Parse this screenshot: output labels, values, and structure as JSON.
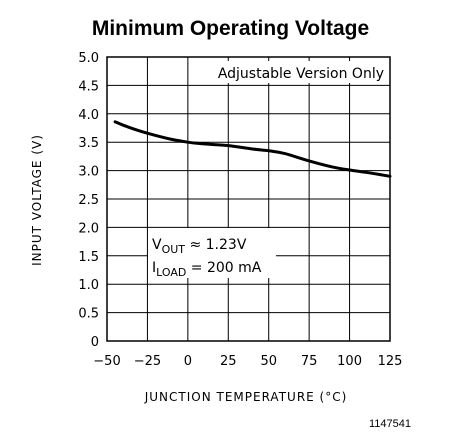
{
  "chart_data": {
    "type": "line",
    "title": "Minimum Operating Voltage",
    "xlabel": "JUNCTION TEMPERATURE (°C)",
    "ylabel": "INPUT VOLTAGE (V)",
    "xlim": [
      -50,
      125
    ],
    "ylim": [
      0,
      5.0
    ],
    "xticks": [
      "-50",
      "-25",
      "0",
      "25",
      "50",
      "75",
      "100",
      "125"
    ],
    "yticks": [
      "0",
      "0.5",
      "1.0",
      "1.5",
      "2.0",
      "2.5",
      "3.0",
      "3.5",
      "4.0",
      "4.5",
      "5.0"
    ],
    "grid": true,
    "legend": "none",
    "annotation": "Adjustable Version Only",
    "condition_lines": [
      {
        "var": "V",
        "sub": "OUT",
        "rest": " ≈ 1.23V"
      },
      {
        "var": "I",
        "sub": "LOAD",
        "rest": " = 200 mA"
      }
    ],
    "series": [
      {
        "color": "#000000",
        "x": [
          -45,
          -40,
          -30,
          -20,
          -10,
          0,
          10,
          25,
          40,
          50,
          60,
          75,
          90,
          100,
          110,
          125
        ],
        "y": [
          3.86,
          3.8,
          3.7,
          3.62,
          3.55,
          3.5,
          3.47,
          3.44,
          3.38,
          3.35,
          3.3,
          3.17,
          3.06,
          3.01,
          2.97,
          2.9
        ]
      }
    ]
  },
  "figure_id": "1147541"
}
